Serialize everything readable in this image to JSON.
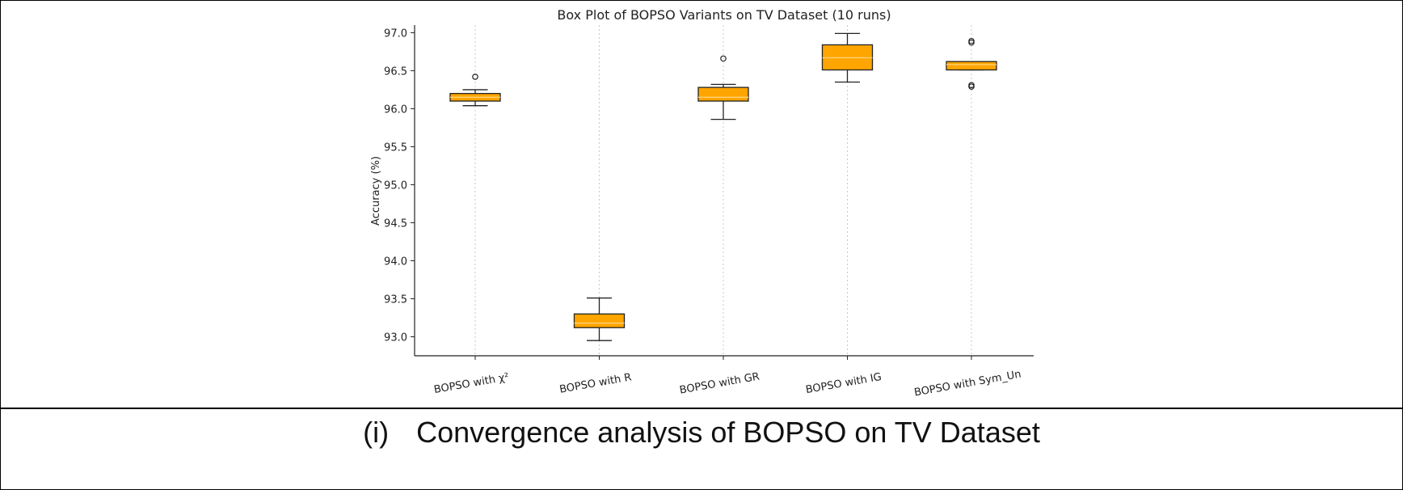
{
  "chart_data": {
    "type": "box",
    "title": "Box Plot of BOPSO Variants on TV Dataset (10 runs)",
    "ylabel": "Accuracy (%)",
    "xlabel": "",
    "ylim": [
      92.75,
      97.1
    ],
    "yticks": [
      "93.0",
      "93.5",
      "94.0",
      "94.5",
      "95.0",
      "95.5",
      "96.0",
      "96.5",
      "97.0"
    ],
    "ytick_values": [
      93.0,
      93.5,
      94.0,
      94.5,
      95.0,
      95.5,
      96.0,
      96.5,
      97.0
    ],
    "categories": [
      "BOPSO with χ²",
      "BOPSO with R",
      "BOPSO with GR",
      "BOPSO with IG",
      "BOPSO with Sym_Un"
    ],
    "boxes": [
      {
        "whisker_low": 96.04,
        "q1": 96.1,
        "median": 96.15,
        "q3": 96.2,
        "whisker_high": 96.25,
        "outliers": [
          96.42
        ]
      },
      {
        "whisker_low": 92.95,
        "q1": 93.12,
        "median": 93.18,
        "q3": 93.3,
        "whisker_high": 93.51,
        "outliers": []
      },
      {
        "whisker_low": 95.86,
        "q1": 96.1,
        "median": 96.15,
        "q3": 96.28,
        "whisker_high": 96.32,
        "outliers": [
          96.66
        ]
      },
      {
        "whisker_low": 96.35,
        "q1": 96.51,
        "median": 96.67,
        "q3": 96.84,
        "whisker_high": 96.99,
        "outliers": []
      },
      {
        "whisker_low": 96.51,
        "q1": 96.51,
        "median": 96.58,
        "q3": 96.62,
        "whisker_high": 96.62,
        "outliers": [
          96.29,
          96.31,
          96.87,
          96.89
        ]
      }
    ],
    "grid": "x-dotted",
    "colors": {
      "box_fill": "#FFA500",
      "median": "#FFD27A",
      "edge": "#222222",
      "grid": "#c8c8c8"
    }
  },
  "caption": {
    "number": "(i)",
    "text": "Convergence analysis of BOPSO on TV Dataset"
  }
}
